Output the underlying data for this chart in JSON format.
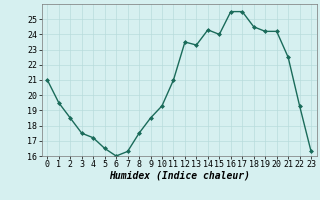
{
  "x": [
    0,
    1,
    2,
    3,
    4,
    5,
    6,
    7,
    8,
    9,
    10,
    11,
    12,
    13,
    14,
    15,
    16,
    17,
    18,
    19,
    20,
    21,
    22,
    23
  ],
  "y": [
    21.0,
    19.5,
    18.5,
    17.5,
    17.2,
    16.5,
    16.0,
    16.3,
    17.5,
    18.5,
    19.3,
    21.0,
    23.5,
    23.3,
    24.3,
    24.0,
    25.5,
    25.5,
    24.5,
    24.2,
    24.2,
    22.5,
    19.3,
    16.3
  ],
  "line_color": "#1a6b5a",
  "marker": "D",
  "marker_size": 2.0,
  "bg_color": "#d6f0f0",
  "grid_color": "#b8dcdc",
  "xlabel": "Humidex (Indice chaleur)",
  "ylim": [
    16,
    26
  ],
  "xlim": [
    -0.5,
    23.5
  ],
  "yticks": [
    16,
    17,
    18,
    19,
    20,
    21,
    22,
    23,
    24,
    25
  ],
  "xticks": [
    0,
    1,
    2,
    3,
    4,
    5,
    6,
    7,
    8,
    9,
    10,
    11,
    12,
    13,
    14,
    15,
    16,
    17,
    18,
    19,
    20,
    21,
    22,
    23
  ],
  "tick_fontsize": 6.0,
  "xlabel_fontsize": 7.0,
  "line_width": 1.0
}
